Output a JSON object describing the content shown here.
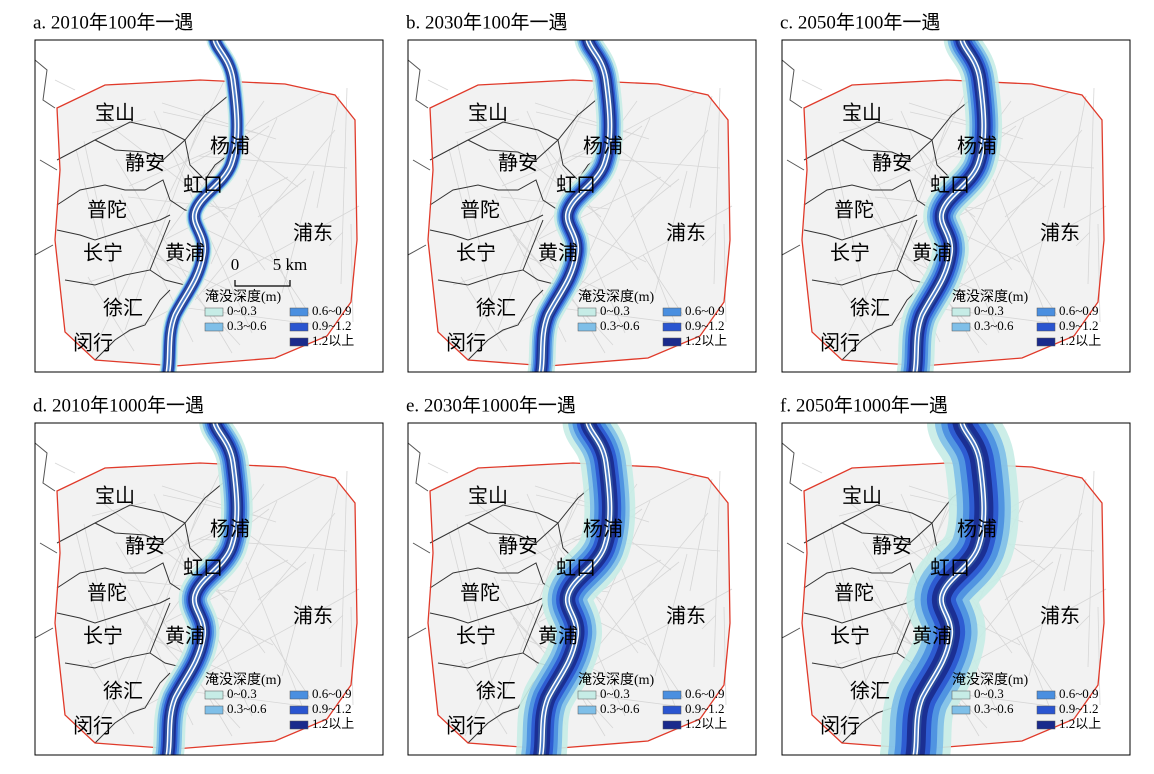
{
  "panels": [
    {
      "title": "a. 2010年100年一遇"
    },
    {
      "title": "b. 2030年100年一遇"
    },
    {
      "title": "c. 2050年100年一遇"
    },
    {
      "title": "d. 2010年1000年一遇"
    },
    {
      "title": "e. 2030年1000年一遇"
    },
    {
      "title": "f. 2050年1000年一遇"
    }
  ],
  "districts": [
    "宝山",
    "静安",
    "杨浦",
    "虹口",
    "普陀",
    "浦东",
    "长宁",
    "黄浦",
    "徐汇",
    "闵行"
  ],
  "legend": {
    "title": "淹没深度(m)",
    "items": [
      {
        "label": "0~0.3",
        "color": "#c6ece6"
      },
      {
        "label": "0.3~0.6",
        "color": "#7fbfe8"
      },
      {
        "label": "0.6~0.9",
        "color": "#4a8fe0"
      },
      {
        "label": "0.9~1.2",
        "color": "#2a55d0"
      },
      {
        "label": "1.2以上",
        "color": "#1a2a8c"
      }
    ]
  },
  "scale_bar": {
    "start": "0",
    "end": "5 km"
  }
}
